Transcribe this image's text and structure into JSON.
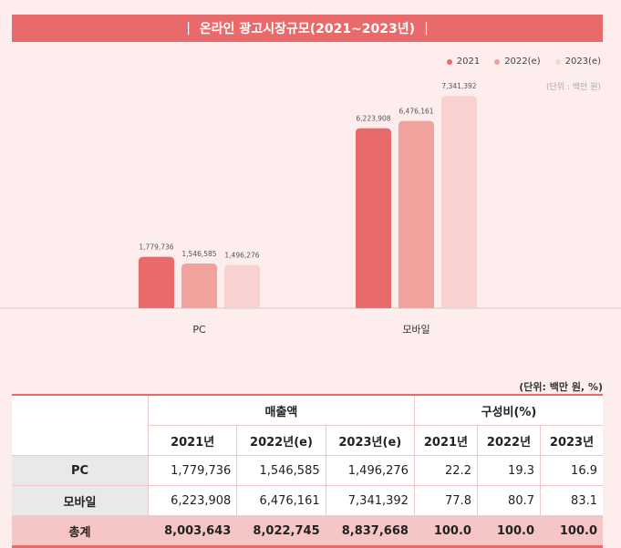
{
  "title": "온라인 광고시장규모(2021~2023년)",
  "title_sep": "|",
  "unit_chart": "(단위 : 백만 원)",
  "unit_table": "(단위: 백만 원, %)",
  "colors": {
    "accent": "#e86a6a",
    "s2021": "#e86a6a",
    "s2022": "#f2a29c",
    "s2023": "#f8d2d0"
  },
  "chart_data": {
    "type": "bar",
    "categories": [
      "PC",
      "모바일"
    ],
    "series": [
      {
        "name": "2021",
        "values": [
          1779736,
          6223908
        ]
      },
      {
        "name": "2022(e)",
        "values": [
          1546585,
          6476161
        ]
      },
      {
        "name": "2023(e)",
        "values": [
          1496276,
          7341392
        ]
      }
    ],
    "value_labels": [
      [
        "1,779,736",
        "1,546,585",
        "1,496,276"
      ],
      [
        "6,223,908",
        "6,476,161",
        "7,341,392"
      ]
    ],
    "ylim": [
      0,
      8200000
    ],
    "legend": "top-right",
    "grid": false
  },
  "table": {
    "group_headers": [
      "매출액",
      "구성비(%)"
    ],
    "col_headers": [
      "2021년",
      "2022년(e)",
      "2023년(e)",
      "2021년",
      "2022년",
      "2023년"
    ],
    "rows": [
      {
        "label": "PC",
        "cells": [
          "1,779,736",
          "1,546,585",
          "1,496,276",
          "22.2",
          "19.3",
          "16.9"
        ]
      },
      {
        "label": "모바일",
        "cells": [
          "6,223,908",
          "6,476,161",
          "7,341,392",
          "77.8",
          "80.7",
          "83.1"
        ]
      }
    ],
    "total": {
      "label": "총계",
      "cells": [
        "8,003,643",
        "8,022,745",
        "8,837,668",
        "100.0",
        "100.0",
        "100.0"
      ]
    }
  }
}
